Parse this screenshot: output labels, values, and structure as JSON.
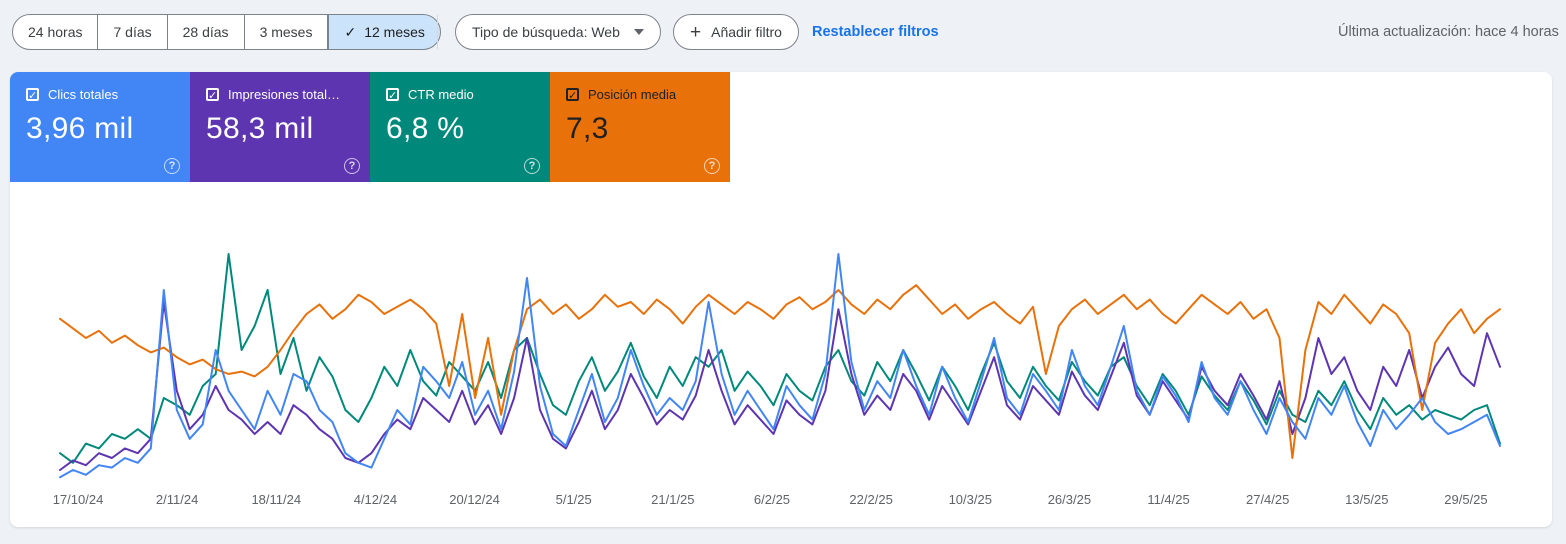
{
  "toolbar": {
    "date_ranges": [
      {
        "label": "24 horas",
        "selected": false
      },
      {
        "label": "7 días",
        "selected": false
      },
      {
        "label": "28 días",
        "selected": false
      },
      {
        "label": "3 meses",
        "selected": false
      },
      {
        "label": "12 meses",
        "selected": true
      }
    ],
    "search_type_label": "Tipo de búsqueda: Web",
    "add_filter_label": "Añadir filtro",
    "reset_filters_label": "Restablecer filtros",
    "last_update": "Última actualización: hace 4 horas"
  },
  "icons": {
    "check": "✓",
    "plus": "+",
    "help": "?"
  },
  "colors": {
    "link_blue": "#1a73e8",
    "selected_chip_bg": "#cce4fb",
    "page_bg": "#eef1f6"
  },
  "metrics": {
    "cards": [
      {
        "id": "clicks",
        "label": "Clics totales",
        "value": "3,96 mil",
        "color": "#4285f4",
        "text_color": "#ffffff",
        "checked": true
      },
      {
        "id": "impressions",
        "label": "Impresiones total…",
        "value": "58,3 mil",
        "color": "#5e35b1",
        "text_color": "#ffffff",
        "checked": true
      },
      {
        "id": "ctr",
        "label": "CTR medio",
        "value": "6,8 %",
        "color": "#00897b",
        "text_color": "#ffffff",
        "checked": true
      },
      {
        "id": "position",
        "label": "Posición media",
        "value": "7,3",
        "color": "#e8710a",
        "text_color": "#202124",
        "checked": true
      }
    ]
  },
  "chart_data": {
    "type": "line",
    "title": "",
    "xlabel": "",
    "ylabel": "",
    "grid": false,
    "legend_position": "metric-cards",
    "ylim": [
      0,
      100
    ],
    "y_axis_visible": false,
    "x_tick_labels": [
      "17/10/24",
      "2/11/24",
      "18/11/24",
      "4/12/24",
      "20/12/24",
      "5/1/25",
      "21/1/25",
      "6/2/25",
      "22/2/25",
      "10/3/25",
      "26/3/25",
      "11/4/25",
      "27/4/25",
      "13/5/25",
      "29/5/25"
    ],
    "note": "Daily series over 12-month range, values normalized 0-100 of plot height (estimated from pixels)",
    "series": [
      {
        "id": "clicks",
        "name": "Clics totales",
        "color": "#4285f4",
        "values": [
          2,
          5,
          3,
          7,
          6,
          10,
          8,
          14,
          80,
          30,
          18,
          24,
          55,
          38,
          30,
          22,
          38,
          28,
          45,
          42,
          30,
          25,
          12,
          8,
          6,
          18,
          30,
          24,
          48,
          42,
          35,
          50,
          28,
          38,
          22,
          46,
          85,
          40,
          20,
          15,
          30,
          45,
          25,
          35,
          55,
          40,
          28,
          35,
          30,
          42,
          75,
          45,
          28,
          38,
          30,
          22,
          40,
          32,
          26,
          45,
          95,
          50,
          30,
          42,
          35,
          55,
          40,
          28,
          48,
          35,
          25,
          42,
          60,
          35,
          28,
          45,
          38,
          30,
          55,
          40,
          32,
          48,
          65,
          38,
          28,
          44,
          36,
          25,
          50,
          35,
          28,
          42,
          30,
          20,
          35,
          25,
          18,
          35,
          28,
          40,
          25,
          15,
          30,
          22,
          28,
          35,
          25,
          20,
          22,
          25,
          28,
          15
        ]
      },
      {
        "id": "impressions",
        "name": "Impresiones totales",
        "color": "#5e35b1",
        "values": [
          5,
          9,
          7,
          12,
          10,
          14,
          12,
          18,
          75,
          38,
          22,
          28,
          40,
          30,
          26,
          20,
          25,
          20,
          32,
          28,
          22,
          18,
          10,
          8,
          12,
          20,
          26,
          22,
          35,
          30,
          25,
          38,
          24,
          32,
          20,
          35,
          60,
          30,
          18,
          14,
          25,
          38,
          22,
          30,
          45,
          35,
          24,
          30,
          26,
          36,
          55,
          38,
          24,
          32,
          26,
          20,
          34,
          28,
          24,
          38,
          72,
          45,
          28,
          36,
          30,
          45,
          38,
          26,
          40,
          32,
          24,
          38,
          52,
          32,
          26,
          40,
          34,
          28,
          46,
          36,
          30,
          44,
          58,
          36,
          28,
          42,
          34,
          26,
          48,
          38,
          32,
          45,
          36,
          26,
          42,
          20,
          35,
          60,
          45,
          52,
          38,
          30,
          48,
          40,
          55,
          35,
          48,
          56,
          45,
          40,
          62,
          48
        ]
      },
      {
        "id": "ctr",
        "name": "CTR medio",
        "color": "#00897b",
        "values": [
          12,
          8,
          16,
          14,
          20,
          18,
          22,
          18,
          35,
          32,
          28,
          40,
          45,
          95,
          55,
          65,
          80,
          45,
          60,
          38,
          52,
          44,
          30,
          25,
          35,
          48,
          40,
          55,
          42,
          36,
          50,
          44,
          38,
          50,
          35,
          55,
          60,
          45,
          32,
          28,
          42,
          52,
          38,
          46,
          58,
          44,
          35,
          48,
          40,
          52,
          48,
          55,
          38,
          46,
          40,
          32,
          45,
          38,
          34,
          48,
          55,
          42,
          36,
          50,
          42,
          55,
          45,
          34,
          48,
          40,
          30,
          45,
          58,
          42,
          35,
          48,
          40,
          34,
          50,
          42,
          36,
          48,
          52,
          40,
          32,
          45,
          38,
          28,
          44,
          36,
          30,
          42,
          34,
          24,
          38,
          28,
          25,
          38,
          32,
          42,
          30,
          22,
          35,
          28,
          32,
          26,
          30,
          28,
          26,
          30,
          32,
          16
        ]
      },
      {
        "id": "position",
        "name": "Posición media",
        "color": "#e8710a",
        "values": [
          68,
          64,
          60,
          63,
          58,
          61,
          57,
          54,
          56,
          52,
          49,
          51,
          47,
          45,
          46,
          44,
          48,
          55,
          63,
          70,
          74,
          68,
          72,
          78,
          75,
          70,
          73,
          76,
          72,
          66,
          40,
          70,
          35,
          60,
          28,
          55,
          72,
          76,
          70,
          74,
          68,
          72,
          78,
          73,
          75,
          70,
          76,
          72,
          66,
          73,
          78,
          74,
          70,
          75,
          72,
          68,
          74,
          77,
          72,
          75,
          80,
          74,
          70,
          76,
          72,
          78,
          82,
          76,
          70,
          74,
          68,
          72,
          75,
          70,
          66,
          73,
          45,
          65,
          72,
          76,
          70,
          74,
          78,
          72,
          76,
          70,
          66,
          72,
          78,
          74,
          70,
          75,
          68,
          72,
          60,
          10,
          55,
          75,
          70,
          78,
          72,
          66,
          74,
          70,
          62,
          30,
          58,
          66,
          72,
          62,
          68,
          72
        ]
      }
    ]
  }
}
